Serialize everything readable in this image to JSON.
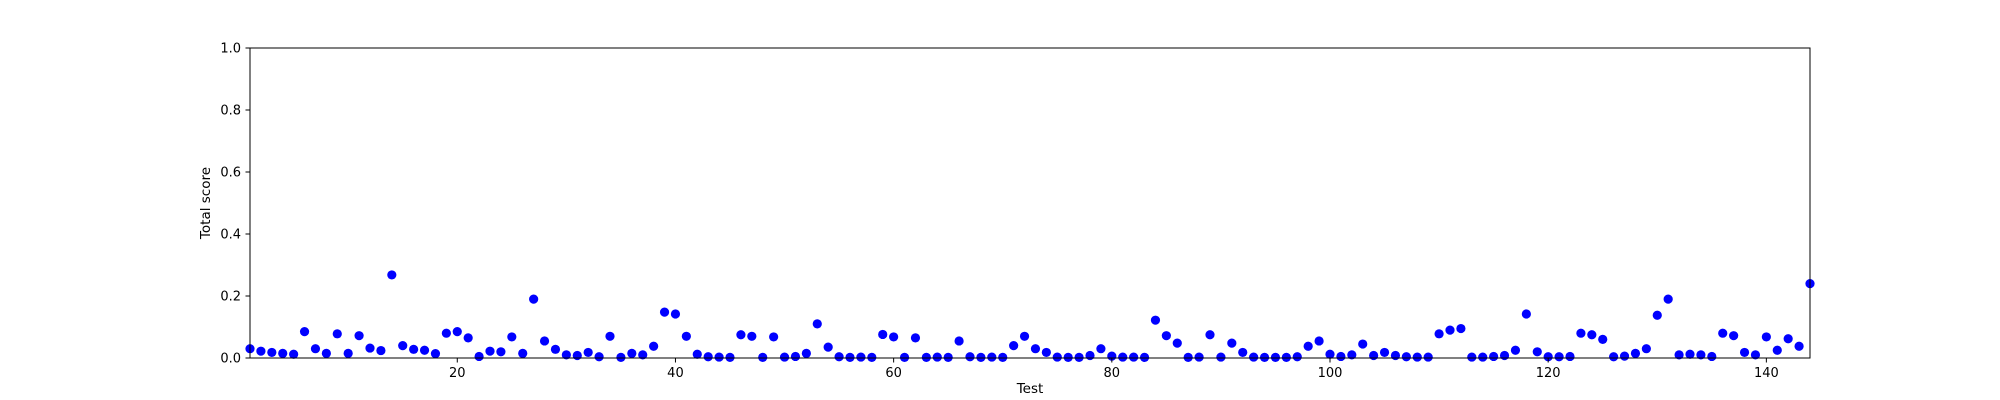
{
  "chart_data": {
    "type": "scatter",
    "title": "",
    "xlabel": "Test",
    "ylabel": "Total score",
    "xlim": [
      1,
      144
    ],
    "ylim": [
      0,
      1
    ],
    "xticks": [
      20,
      40,
      60,
      80,
      100,
      120,
      140
    ],
    "yticks": [
      0.0,
      0.2,
      0.4,
      0.6,
      0.8,
      1.0
    ],
    "ytick_labels": [
      "0.0",
      "0.2",
      "0.4",
      "0.6",
      "0.8",
      "1.0"
    ],
    "grid": false,
    "marker_color": "#0000ff",
    "series": [
      {
        "x": [
          1,
          2,
          3,
          4,
          5,
          6,
          7,
          8,
          9,
          10,
          11,
          12,
          13,
          14,
          15,
          16,
          17,
          18,
          19,
          20,
          21,
          22,
          23,
          24,
          25,
          26,
          27,
          28,
          29,
          30,
          31,
          32,
          33,
          34,
          35,
          36,
          37,
          38,
          39,
          40,
          41,
          42,
          43,
          44,
          45,
          46,
          47,
          48,
          49,
          50,
          51,
          52,
          53,
          54,
          55,
          56,
          57,
          58,
          59,
          60,
          61,
          62,
          63,
          64,
          65,
          66,
          67,
          68,
          69,
          70,
          71,
          72,
          73,
          74,
          75,
          76,
          77,
          78,
          79,
          80,
          81,
          82,
          83,
          84,
          85,
          86,
          87,
          88,
          89,
          90,
          91,
          92,
          93,
          94,
          95,
          96,
          97,
          98,
          99,
          100,
          101,
          102,
          103,
          104,
          105,
          106,
          107,
          108,
          109,
          110,
          111,
          112,
          113,
          114,
          115,
          116,
          117,
          118,
          119,
          120,
          121,
          122,
          123,
          124,
          125,
          126,
          127,
          128,
          129,
          130,
          131,
          132,
          133,
          134,
          135,
          136,
          137,
          138,
          139,
          140,
          141,
          142,
          143,
          144
        ],
        "y": [
          0.03,
          0.022,
          0.018,
          0.015,
          0.012,
          0.085,
          0.03,
          0.015,
          0.078,
          0.015,
          0.072,
          0.032,
          0.024,
          0.268,
          0.04,
          0.028,
          0.025,
          0.014,
          0.08,
          0.085,
          0.065,
          0.005,
          0.022,
          0.02,
          0.068,
          0.015,
          0.19,
          0.055,
          0.028,
          0.01,
          0.008,
          0.018,
          0.004,
          0.07,
          0.002,
          0.015,
          0.01,
          0.038,
          0.148,
          0.142,
          0.07,
          0.012,
          0.004,
          0.003,
          0.002,
          0.075,
          0.07,
          0.002,
          0.068,
          0.003,
          0.005,
          0.015,
          0.11,
          0.035,
          0.004,
          0.002,
          0.003,
          0.002,
          0.076,
          0.068,
          0.002,
          0.065,
          0.002,
          0.003,
          0.002,
          0.055,
          0.004,
          0.002,
          0.003,
          0.002,
          0.04,
          0.07,
          0.03,
          0.018,
          0.003,
          0.002,
          0.002,
          0.008,
          0.03,
          0.006,
          0.003,
          0.003,
          0.002,
          0.122,
          0.072,
          0.048,
          0.002,
          0.003,
          0.075,
          0.003,
          0.048,
          0.018,
          0.003,
          0.002,
          0.002,
          0.002,
          0.004,
          0.038,
          0.055,
          0.012,
          0.005,
          0.01,
          0.045,
          0.008,
          0.018,
          0.008,
          0.004,
          0.003,
          0.003,
          0.078,
          0.09,
          0.095,
          0.003,
          0.003,
          0.005,
          0.008,
          0.025,
          0.142,
          0.02,
          0.004,
          0.004,
          0.005,
          0.08,
          0.075,
          0.06,
          0.004,
          0.006,
          0.015,
          0.03,
          0.138,
          0.19,
          0.01,
          0.012,
          0.01,
          0.005,
          0.08,
          0.072,
          0.018,
          0.01,
          0.068,
          0.025,
          0.062,
          0.038,
          0.24
        ]
      }
    ]
  }
}
